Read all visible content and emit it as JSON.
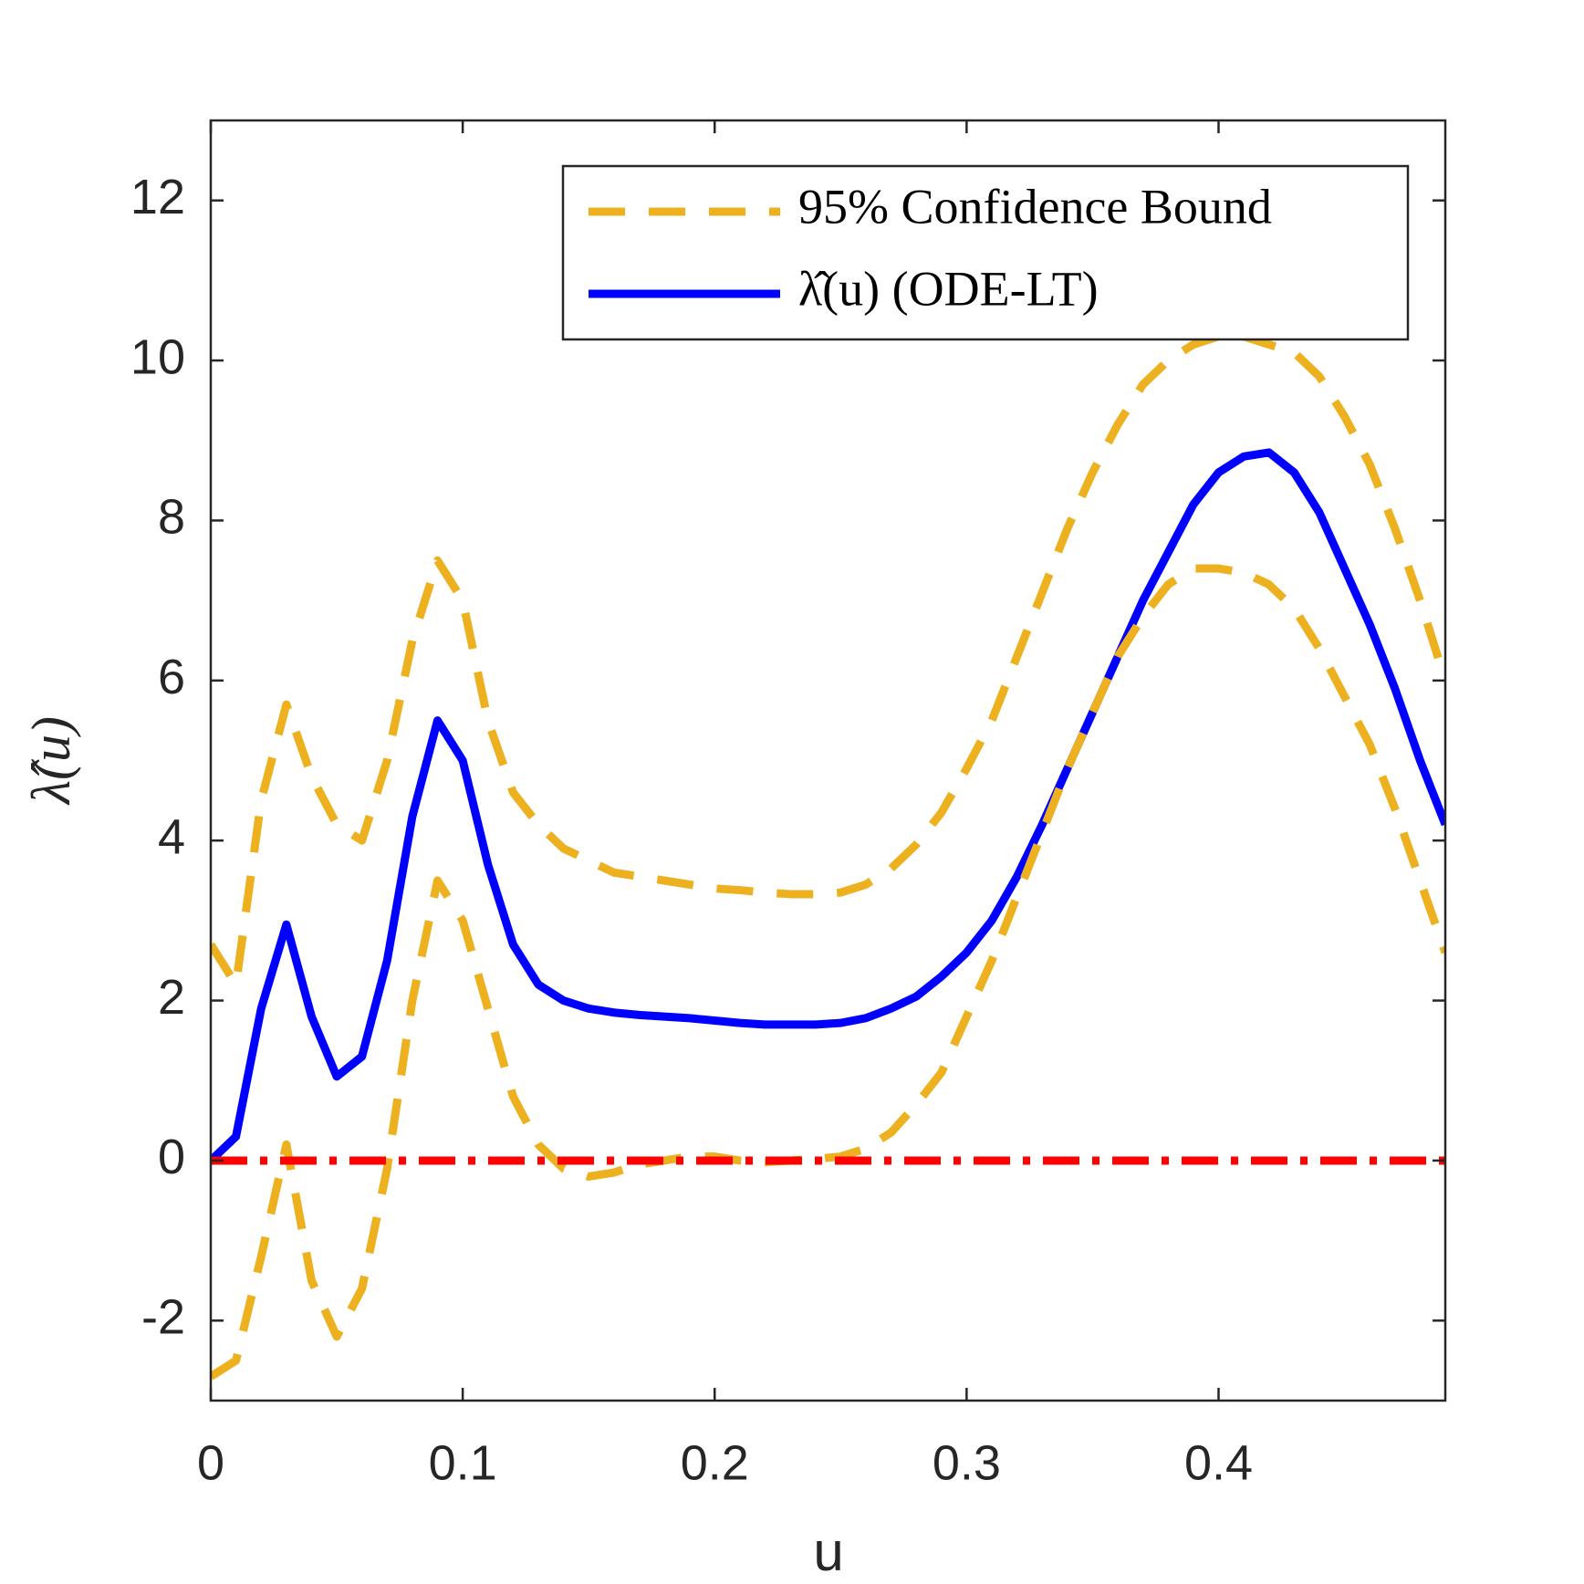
{
  "chart_data": {
    "type": "line",
    "xlabel": "u",
    "ylabel": "λ̂(u)",
    "xlim": [
      0,
      0.49
    ],
    "ylim": [
      -3,
      13
    ],
    "xticks": [
      0,
      0.1,
      0.2,
      0.3,
      0.4
    ],
    "yticks": [
      -2,
      0,
      2,
      4,
      6,
      8,
      10,
      12
    ],
    "legend": "upper right",
    "x": [
      0,
      0.01,
      0.02,
      0.03,
      0.04,
      0.05,
      0.06,
      0.07,
      0.08,
      0.09,
      0.1,
      0.11,
      0.12,
      0.13,
      0.14,
      0.15,
      0.16,
      0.17,
      0.18,
      0.19,
      0.2,
      0.21,
      0.22,
      0.23,
      0.24,
      0.25,
      0.26,
      0.27,
      0.28,
      0.29,
      0.3,
      0.31,
      0.32,
      0.33,
      0.34,
      0.35,
      0.36,
      0.37,
      0.38,
      0.39,
      0.4,
      0.41,
      0.42,
      0.43,
      0.44,
      0.45,
      0.46,
      0.47,
      0.48,
      0.49
    ],
    "series": [
      {
        "name": "95% Confidence Bound",
        "color": "#EDB120",
        "linestyle": "dashed",
        "values": [
          2.7,
          2.2,
          4.5,
          5.7,
          4.8,
          4.2,
          4.0,
          5.0,
          6.5,
          7.5,
          7.0,
          5.5,
          4.6,
          4.2,
          3.9,
          3.75,
          3.6,
          3.55,
          3.5,
          3.45,
          3.4,
          3.38,
          3.35,
          3.33,
          3.33,
          3.35,
          3.45,
          3.65,
          3.95,
          4.35,
          4.9,
          5.5,
          6.3,
          7.1,
          7.9,
          8.6,
          9.2,
          9.7,
          10.0,
          10.2,
          10.3,
          10.3,
          10.2,
          10.1,
          9.8,
          9.3,
          8.7,
          7.9,
          7.0,
          6.0
        ]
      },
      {
        "name": "λ̂(u) (ODE-LT)",
        "color": "#0000FF",
        "linestyle": "solid",
        "values": [
          0,
          0.3,
          1.9,
          2.95,
          1.8,
          1.05,
          1.3,
          2.5,
          4.3,
          5.5,
          5.0,
          3.7,
          2.7,
          2.2,
          2.0,
          1.9,
          1.85,
          1.82,
          1.8,
          1.78,
          1.75,
          1.72,
          1.7,
          1.7,
          1.7,
          1.72,
          1.78,
          1.9,
          2.05,
          2.3,
          2.6,
          3.0,
          3.55,
          4.2,
          4.9,
          5.6,
          6.3,
          7.0,
          7.6,
          8.2,
          8.6,
          8.8,
          8.85,
          8.6,
          8.1,
          7.4,
          6.7,
          5.9,
          5.0,
          4.2
        ]
      },
      {
        "color": "#EDB120",
        "linestyle": "dashed",
        "values": [
          -2.7,
          -2.5,
          -1.2,
          0.2,
          -1.5,
          -2.2,
          -1.6,
          -0.1,
          2.0,
          3.5,
          3.0,
          1.9,
          0.8,
          0.2,
          -0.1,
          -0.2,
          -0.15,
          -0.05,
          0.0,
          0.05,
          0.05,
          0.0,
          -0.02,
          0.0,
          0.02,
          0.05,
          0.15,
          0.35,
          0.7,
          1.1,
          1.8,
          2.5,
          3.3,
          4.1,
          4.9,
          5.6,
          6.3,
          6.8,
          7.2,
          7.4,
          7.4,
          7.35,
          7.2,
          6.9,
          6.4,
          5.8,
          5.2,
          4.4,
          3.5,
          2.6
        ]
      },
      {
        "color": "#FF0000",
        "linestyle": "dashdot",
        "values": [
          0,
          0,
          0,
          0,
          0,
          0,
          0,
          0,
          0,
          0,
          0,
          0,
          0,
          0,
          0,
          0,
          0,
          0,
          0,
          0,
          0,
          0,
          0,
          0,
          0,
          0,
          0,
          0,
          0,
          0,
          0,
          0,
          0,
          0,
          0,
          0,
          0,
          0,
          0,
          0,
          0,
          0,
          0,
          0,
          0,
          0,
          0,
          0,
          0,
          0
        ]
      }
    ]
  }
}
